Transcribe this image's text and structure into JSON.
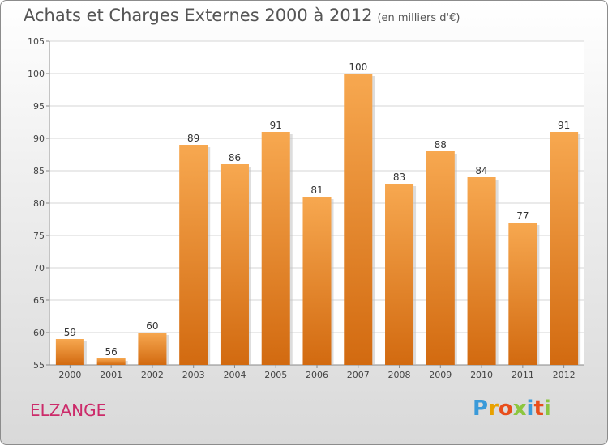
{
  "title": "Achats et Charges Externes 2000 à 2012",
  "unit": "(en milliers d'€)",
  "place": "ELZANGE",
  "logo": {
    "text": "Proxiti",
    "colors": [
      "#3a9ad9",
      "#e8a100",
      "#e84e1b",
      "#8cc63f",
      "#3a9ad9",
      "#e84e1b",
      "#8cc63f"
    ]
  },
  "chart_data": {
    "type": "bar",
    "categories": [
      "2000",
      "2001",
      "2002",
      "2003",
      "2004",
      "2005",
      "2006",
      "2007",
      "2008",
      "2009",
      "2010",
      "2011",
      "2012"
    ],
    "values": [
      59,
      56,
      60,
      89,
      86,
      91,
      81,
      100,
      83,
      88,
      84,
      77,
      91
    ],
    "ylim": [
      55,
      105
    ],
    "yticks": [
      55,
      60,
      65,
      70,
      75,
      80,
      85,
      90,
      95,
      100,
      105
    ],
    "grid": true,
    "bar_color": "#f08a2a"
  }
}
